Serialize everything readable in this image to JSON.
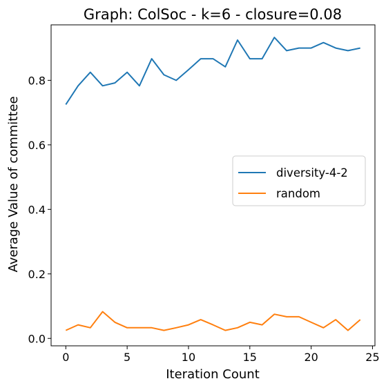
{
  "chart_data": {
    "type": "line",
    "title": "Graph: ColSoc - k=6 - closure=0.08",
    "xlabel": "Iteration Count",
    "ylabel": "Average Value of committee",
    "xlim": [
      -1.2,
      25.2
    ],
    "ylim": [
      -0.023,
      0.972
    ],
    "xticks": [
      0,
      5,
      10,
      15,
      20,
      25
    ],
    "yticks": [
      0.0,
      0.2,
      0.4,
      0.6,
      0.8
    ],
    "xtick_labels": [
      "0",
      "5",
      "10",
      "15",
      "20",
      "25"
    ],
    "ytick_labels": [
      "0.0",
      "0.2",
      "0.4",
      "0.6",
      "0.8"
    ],
    "grid": false,
    "legend_position": "center-right",
    "x": [
      0,
      1,
      2,
      3,
      4,
      5,
      6,
      7,
      8,
      9,
      10,
      11,
      12,
      13,
      14,
      15,
      16,
      17,
      18,
      19,
      20,
      21,
      22,
      23,
      24
    ],
    "series": [
      {
        "name": "diversity-4-2",
        "color": "#1f77b4",
        "values": [
          0.725,
          0.783,
          0.825,
          0.783,
          0.792,
          0.825,
          0.783,
          0.867,
          0.817,
          0.8,
          0.833,
          0.867,
          0.867,
          0.842,
          0.925,
          0.867,
          0.867,
          0.933,
          0.892,
          0.9,
          0.9,
          0.917,
          0.9,
          0.892,
          0.9
        ]
      },
      {
        "name": "random",
        "color": "#ff7f0e",
        "values": [
          0.025,
          0.042,
          0.033,
          0.083,
          0.05,
          0.033,
          0.033,
          0.033,
          0.025,
          0.033,
          0.042,
          0.058,
          0.042,
          0.025,
          0.033,
          0.05,
          0.042,
          0.075,
          0.067,
          0.067,
          0.05,
          0.033,
          0.058,
          0.025,
          0.058
        ]
      }
    ]
  }
}
